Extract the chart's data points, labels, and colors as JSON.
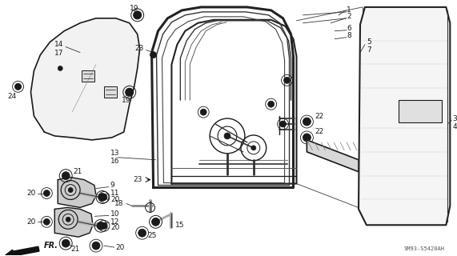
{
  "bg_color": "#ffffff",
  "line_color": "#1a1a1a",
  "watermark": "SM93-S5420AH",
  "fig_width": 5.71,
  "fig_height": 3.2,
  "dpi": 100
}
